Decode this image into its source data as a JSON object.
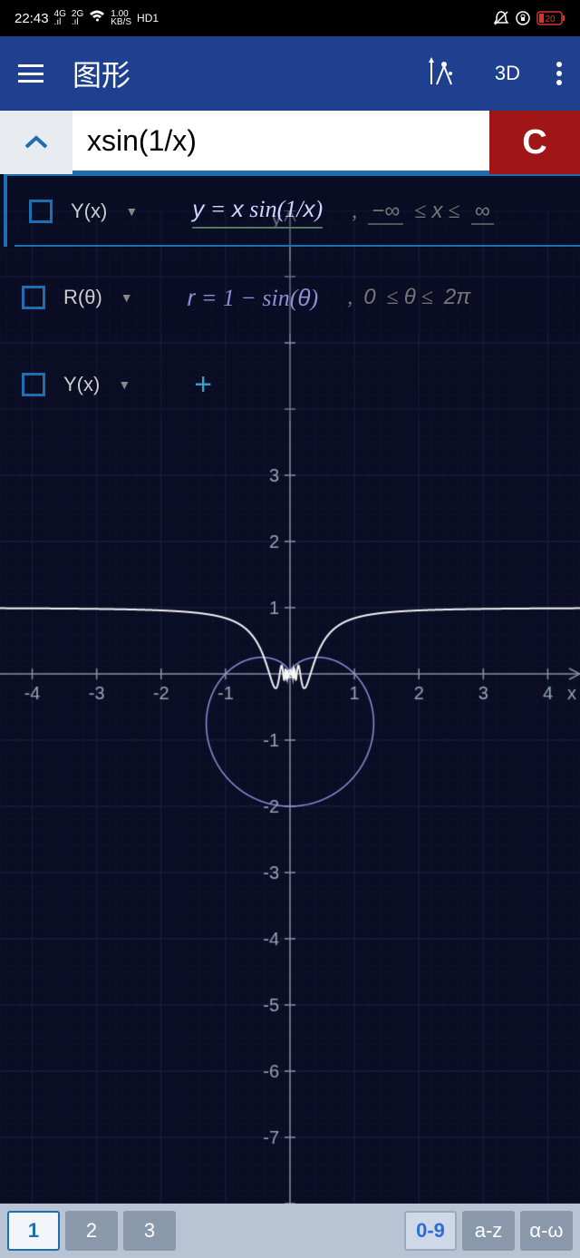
{
  "status": {
    "time": "22:43",
    "net4g": "4G",
    "net2g": "2G",
    "speed": "1.00",
    "speed_unit": "KB/S",
    "hd": "HD1",
    "battery": "20"
  },
  "header": {
    "title": "图形",
    "mode_3d": "3D"
  },
  "input": {
    "expression": "xsin(1/x)",
    "clear": "C"
  },
  "functions": [
    {
      "type": "Y(x)",
      "expr_html": "y = x sin(1/x)",
      "range_from": "−∞",
      "range_var": "x",
      "range_to": "∞",
      "color": "#e8e8ff"
    },
    {
      "type": "R(θ)",
      "expr_html": "r = 1 − sin(θ)",
      "range_from": "0",
      "range_var": "θ",
      "range_to": "2π",
      "color": "#8f8fd8"
    },
    {
      "type": "Y(x)",
      "add": true
    }
  ],
  "chart": {
    "type": "line",
    "bg": "#0a0d24",
    "axis_color": "#8a93a6",
    "tick_text_color": "#9aa3b6",
    "grid_color": "#1a2240",
    "grid_minor_color": "#10152e",
    "x_axis": {
      "min": -4.5,
      "max": 4.5,
      "ticks": [
        -4,
        -3,
        -2,
        -1,
        1,
        2,
        3,
        4
      ],
      "label_ticks": [
        -4,
        -3,
        -2,
        -1,
        1,
        2,
        3,
        4
      ]
    },
    "y_axis": {
      "min": -8,
      "max": 7,
      "ticks": [
        -8,
        -7,
        -6,
        -5,
        -4,
        -3,
        -2,
        -1,
        1,
        2,
        3,
        4,
        5,
        6,
        7
      ],
      "label_ticks": [
        -7,
        -6,
        -5,
        -4,
        -3,
        -2,
        -1,
        1,
        2,
        3
      ]
    },
    "series": [
      {
        "name": "xsin1x",
        "kind": "cartesian",
        "formula": "x*sin(1/x)",
        "color": "#f4f4f4",
        "width": 2
      },
      {
        "name": "cardioid",
        "kind": "polar",
        "formula": "1-sin(t)",
        "color": "#8f8fd8",
        "width": 1.5
      }
    ],
    "origin_marker": {
      "radius": 4,
      "stroke": "#ffffff"
    }
  },
  "bottombar": {
    "tabs": [
      "1",
      "2",
      "3"
    ],
    "active_tab": "1",
    "groups": [
      "0-9",
      "a-z",
      "α-ω"
    ]
  }
}
